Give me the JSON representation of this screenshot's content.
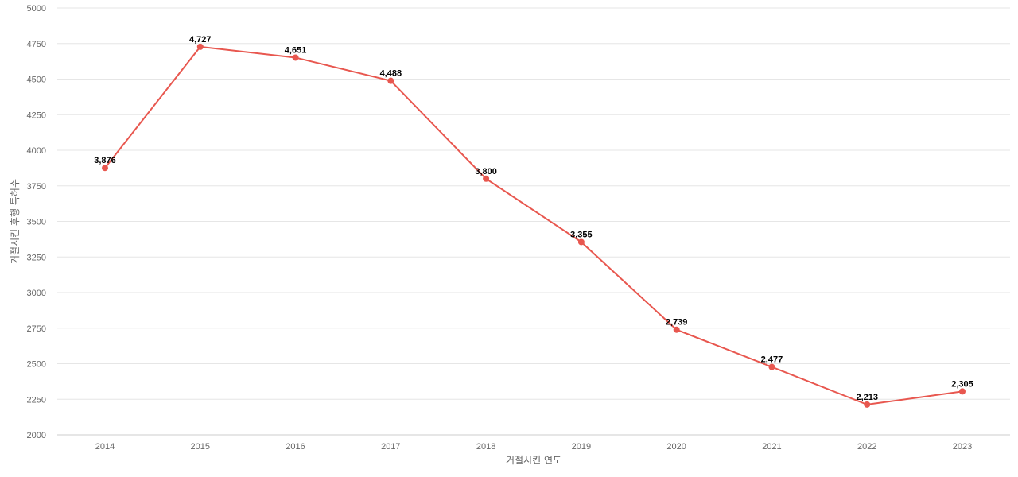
{
  "chart_data": {
    "type": "line",
    "title": "",
    "xlabel": "거절시킨 연도",
    "ylabel": "거절시킨 후행 특허수",
    "categories": [
      "2014",
      "2015",
      "2016",
      "2017",
      "2018",
      "2019",
      "2020",
      "2021",
      "2022",
      "2023"
    ],
    "series": [
      {
        "values": [
          3876,
          4727,
          4651,
          4488,
          3800,
          3355,
          2739,
          2477,
          2213,
          2305
        ],
        "data_labels": [
          "3,876",
          "4,727",
          "4,651",
          "4,488",
          "3,800",
          "3,355",
          "2,739",
          "2,477",
          "2,213",
          "2,305"
        ],
        "color": "#e8574f"
      }
    ],
    "ylim": [
      2000,
      5000
    ],
    "yticks": [
      "2000",
      "2250",
      "2500",
      "2750",
      "3000",
      "3250",
      "3500",
      "3750",
      "4000",
      "4250",
      "4500",
      "4750",
      "5000"
    ],
    "grid": true,
    "legend": "none"
  }
}
